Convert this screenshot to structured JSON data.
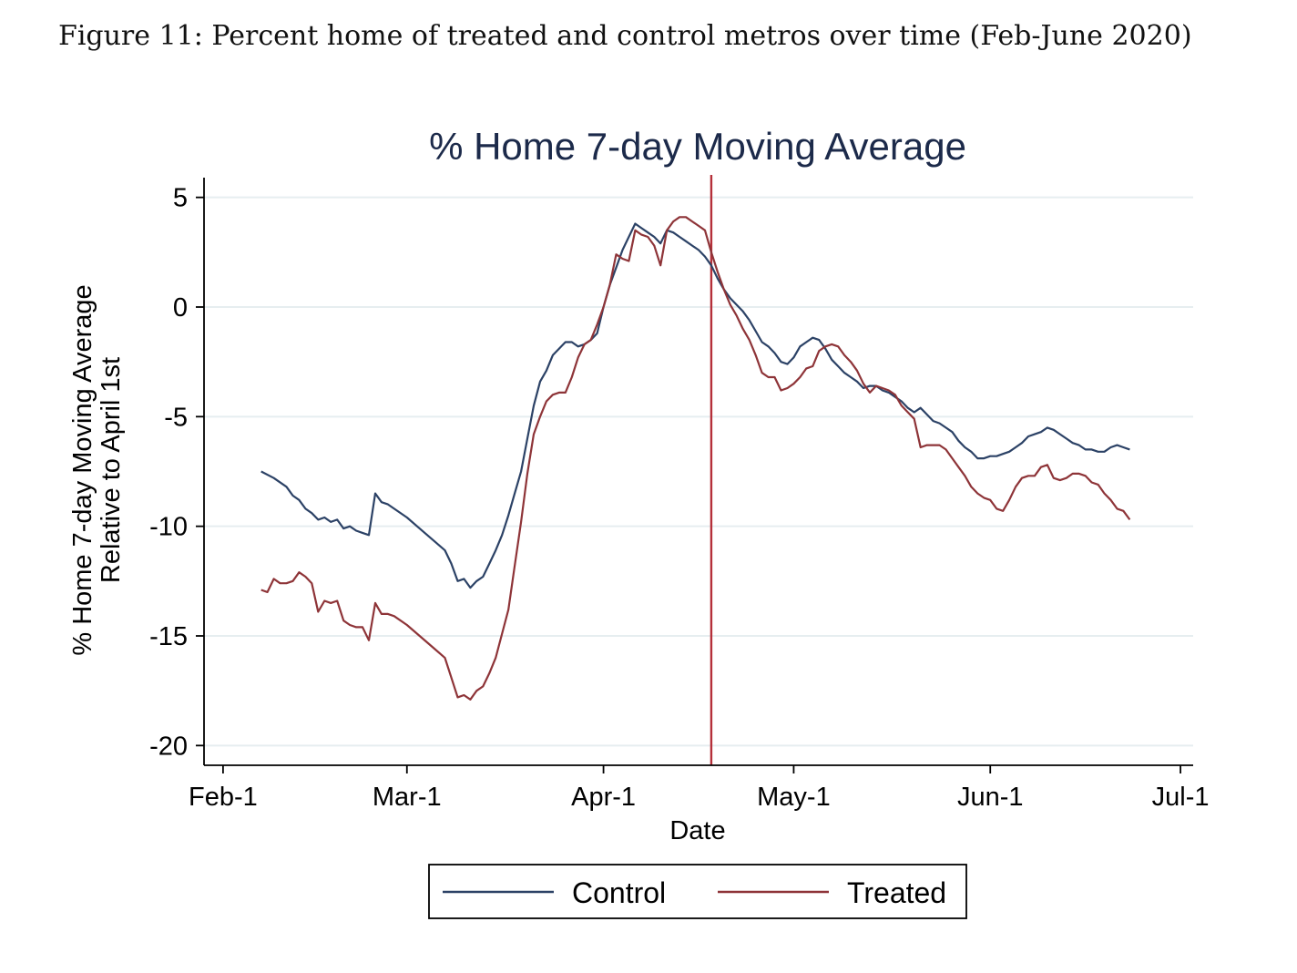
{
  "figure": {
    "caption": "Figure 11: Percent home of treated and control metros over time (Feb-June 2020)"
  },
  "chart_data": {
    "type": "line",
    "title": "% Home 7-day Moving Average",
    "xlabel": "Date",
    "ylabel_line1": "% Home 7-day Moving Average",
    "ylabel_line2": "Relative to April 1st",
    "x_ticks": [
      {
        "label": "Feb-1",
        "date": "2020-02-01"
      },
      {
        "label": "Mar-1",
        "date": "2020-03-01"
      },
      {
        "label": "Apr-1",
        "date": "2020-04-01"
      },
      {
        "label": "May-1",
        "date": "2020-05-01"
      },
      {
        "label": "Jun-1",
        "date": "2020-06-01"
      },
      {
        "label": "Jul-1",
        "date": "2020-07-01"
      }
    ],
    "xlim": [
      "2020-01-29",
      "2020-07-03"
    ],
    "y_ticks": [
      5,
      0,
      -5,
      -10,
      -15,
      -20
    ],
    "ylim": [
      -20.9,
      5.9
    ],
    "grid": true,
    "vertical_line": {
      "date": "2020-04-18",
      "color": "#b5303a"
    },
    "legend_position": "bottom",
    "series": [
      {
        "name": "Control",
        "color": "#2c4266",
        "points": [
          [
            "2020-02-07",
            -7.5
          ],
          [
            "2020-02-09",
            -7.8
          ],
          [
            "2020-02-11",
            -8.2
          ],
          [
            "2020-02-12",
            -8.6
          ],
          [
            "2020-02-13",
            -8.8
          ],
          [
            "2020-02-14",
            -9.2
          ],
          [
            "2020-02-15",
            -9.4
          ],
          [
            "2020-02-16",
            -9.7
          ],
          [
            "2020-02-17",
            -9.6
          ],
          [
            "2020-02-18",
            -9.8
          ],
          [
            "2020-02-19",
            -9.7
          ],
          [
            "2020-02-20",
            -10.1
          ],
          [
            "2020-02-21",
            -10.0
          ],
          [
            "2020-02-22",
            -10.2
          ],
          [
            "2020-02-23",
            -10.3
          ],
          [
            "2020-02-24",
            -10.4
          ],
          [
            "2020-02-25",
            -8.5
          ],
          [
            "2020-02-26",
            -8.9
          ],
          [
            "2020-02-27",
            -9.0
          ],
          [
            "2020-02-28",
            -9.2
          ],
          [
            "2020-03-01",
            -9.6
          ],
          [
            "2020-03-03",
            -10.1
          ],
          [
            "2020-03-05",
            -10.6
          ],
          [
            "2020-03-07",
            -11.1
          ],
          [
            "2020-03-08",
            -11.7
          ],
          [
            "2020-03-09",
            -12.5
          ],
          [
            "2020-03-10",
            -12.4
          ],
          [
            "2020-03-11",
            -12.8
          ],
          [
            "2020-03-12",
            -12.5
          ],
          [
            "2020-03-13",
            -12.3
          ],
          [
            "2020-03-14",
            -11.7
          ],
          [
            "2020-03-15",
            -11.1
          ],
          [
            "2020-03-16",
            -10.4
          ],
          [
            "2020-03-17",
            -9.5
          ],
          [
            "2020-03-18",
            -8.5
          ],
          [
            "2020-03-19",
            -7.5
          ],
          [
            "2020-03-20",
            -6.0
          ],
          [
            "2020-03-21",
            -4.5
          ],
          [
            "2020-03-22",
            -3.4
          ],
          [
            "2020-03-23",
            -2.9
          ],
          [
            "2020-03-24",
            -2.2
          ],
          [
            "2020-03-25",
            -1.9
          ],
          [
            "2020-03-26",
            -1.6
          ],
          [
            "2020-03-27",
            -1.6
          ],
          [
            "2020-03-28",
            -1.8
          ],
          [
            "2020-03-29",
            -1.7
          ],
          [
            "2020-03-30",
            -1.5
          ],
          [
            "2020-03-31",
            -1.2
          ],
          [
            "2020-04-01",
            0.0
          ],
          [
            "2020-04-02",
            1.0
          ],
          [
            "2020-04-03",
            1.8
          ],
          [
            "2020-04-04",
            2.6
          ],
          [
            "2020-04-05",
            3.2
          ],
          [
            "2020-04-06",
            3.8
          ],
          [
            "2020-04-07",
            3.6
          ],
          [
            "2020-04-08",
            3.4
          ],
          [
            "2020-04-09",
            3.2
          ],
          [
            "2020-04-10",
            2.9
          ],
          [
            "2020-04-11",
            3.5
          ],
          [
            "2020-04-12",
            3.4
          ],
          [
            "2020-04-13",
            3.2
          ],
          [
            "2020-04-14",
            3.0
          ],
          [
            "2020-04-15",
            2.8
          ],
          [
            "2020-04-16",
            2.6
          ],
          [
            "2020-04-17",
            2.3
          ],
          [
            "2020-04-18",
            1.9
          ],
          [
            "2020-04-19",
            1.3
          ],
          [
            "2020-04-20",
            0.8
          ],
          [
            "2020-04-21",
            0.4
          ],
          [
            "2020-04-22",
            0.1
          ],
          [
            "2020-04-23",
            -0.2
          ],
          [
            "2020-04-24",
            -0.6
          ],
          [
            "2020-04-25",
            -1.1
          ],
          [
            "2020-04-26",
            -1.6
          ],
          [
            "2020-04-27",
            -1.8
          ],
          [
            "2020-04-28",
            -2.1
          ],
          [
            "2020-04-29",
            -2.5
          ],
          [
            "2020-04-30",
            -2.6
          ],
          [
            "2020-05-01",
            -2.3
          ],
          [
            "2020-05-02",
            -1.8
          ],
          [
            "2020-05-03",
            -1.6
          ],
          [
            "2020-05-04",
            -1.4
          ],
          [
            "2020-05-05",
            -1.5
          ],
          [
            "2020-05-06",
            -1.9
          ],
          [
            "2020-05-07",
            -2.4
          ],
          [
            "2020-05-08",
            -2.7
          ],
          [
            "2020-05-09",
            -3.0
          ],
          [
            "2020-05-10",
            -3.2
          ],
          [
            "2020-05-11",
            -3.4
          ],
          [
            "2020-05-12",
            -3.7
          ],
          [
            "2020-05-13",
            -3.6
          ],
          [
            "2020-05-14",
            -3.6
          ],
          [
            "2020-05-15",
            -3.8
          ],
          [
            "2020-05-16",
            -3.9
          ],
          [
            "2020-05-17",
            -4.1
          ],
          [
            "2020-05-18",
            -4.3
          ],
          [
            "2020-05-19",
            -4.6
          ],
          [
            "2020-05-20",
            -4.8
          ],
          [
            "2020-05-21",
            -4.6
          ],
          [
            "2020-05-22",
            -4.9
          ],
          [
            "2020-05-23",
            -5.2
          ],
          [
            "2020-05-24",
            -5.3
          ],
          [
            "2020-05-25",
            -5.5
          ],
          [
            "2020-05-26",
            -5.7
          ],
          [
            "2020-05-27",
            -6.1
          ],
          [
            "2020-05-28",
            -6.4
          ],
          [
            "2020-05-29",
            -6.6
          ],
          [
            "2020-05-30",
            -6.9
          ],
          [
            "2020-05-31",
            -6.9
          ],
          [
            "2020-06-01",
            -6.8
          ],
          [
            "2020-06-02",
            -6.8
          ],
          [
            "2020-06-03",
            -6.7
          ],
          [
            "2020-06-04",
            -6.6
          ],
          [
            "2020-06-05",
            -6.4
          ],
          [
            "2020-06-06",
            -6.2
          ],
          [
            "2020-06-07",
            -5.9
          ],
          [
            "2020-06-08",
            -5.8
          ],
          [
            "2020-06-09",
            -5.7
          ],
          [
            "2020-06-10",
            -5.5
          ],
          [
            "2020-06-11",
            -5.6
          ],
          [
            "2020-06-12",
            -5.8
          ],
          [
            "2020-06-13",
            -6.0
          ],
          [
            "2020-06-14",
            -6.2
          ],
          [
            "2020-06-15",
            -6.3
          ],
          [
            "2020-06-16",
            -6.5
          ],
          [
            "2020-06-17",
            -6.5
          ],
          [
            "2020-06-18",
            -6.6
          ],
          [
            "2020-06-19",
            -6.6
          ],
          [
            "2020-06-20",
            -6.4
          ],
          [
            "2020-06-21",
            -6.3
          ],
          [
            "2020-06-22",
            -6.4
          ],
          [
            "2020-06-23",
            -6.5
          ]
        ]
      },
      {
        "name": "Treated",
        "color": "#8e3438",
        "points": [
          [
            "2020-02-07",
            -12.9
          ],
          [
            "2020-02-08",
            -13.0
          ],
          [
            "2020-02-09",
            -12.4
          ],
          [
            "2020-02-10",
            -12.6
          ],
          [
            "2020-02-11",
            -12.6
          ],
          [
            "2020-02-12",
            -12.5
          ],
          [
            "2020-02-13",
            -12.1
          ],
          [
            "2020-02-14",
            -12.3
          ],
          [
            "2020-02-15",
            -12.6
          ],
          [
            "2020-02-16",
            -13.9
          ],
          [
            "2020-02-17",
            -13.4
          ],
          [
            "2020-02-18",
            -13.5
          ],
          [
            "2020-02-19",
            -13.4
          ],
          [
            "2020-02-20",
            -14.3
          ],
          [
            "2020-02-21",
            -14.5
          ],
          [
            "2020-02-22",
            -14.6
          ],
          [
            "2020-02-23",
            -14.6
          ],
          [
            "2020-02-24",
            -15.2
          ],
          [
            "2020-02-25",
            -13.5
          ],
          [
            "2020-02-26",
            -14.0
          ],
          [
            "2020-02-27",
            -14.0
          ],
          [
            "2020-02-28",
            -14.1
          ],
          [
            "2020-03-01",
            -14.5
          ],
          [
            "2020-03-03",
            -15.0
          ],
          [
            "2020-03-05",
            -15.5
          ],
          [
            "2020-03-07",
            -16.0
          ],
          [
            "2020-03-08",
            -16.9
          ],
          [
            "2020-03-09",
            -17.8
          ],
          [
            "2020-03-10",
            -17.7
          ],
          [
            "2020-03-11",
            -17.9
          ],
          [
            "2020-03-12",
            -17.5
          ],
          [
            "2020-03-13",
            -17.3
          ],
          [
            "2020-03-14",
            -16.7
          ],
          [
            "2020-03-15",
            -16.0
          ],
          [
            "2020-03-16",
            -14.9
          ],
          [
            "2020-03-17",
            -13.8
          ],
          [
            "2020-03-18",
            -11.8
          ],
          [
            "2020-03-19",
            -9.8
          ],
          [
            "2020-03-20",
            -7.6
          ],
          [
            "2020-03-21",
            -5.8
          ],
          [
            "2020-03-22",
            -5.0
          ],
          [
            "2020-03-23",
            -4.3
          ],
          [
            "2020-03-24",
            -4.0
          ],
          [
            "2020-03-25",
            -3.9
          ],
          [
            "2020-03-26",
            -3.9
          ],
          [
            "2020-03-27",
            -3.2
          ],
          [
            "2020-03-28",
            -2.3
          ],
          [
            "2020-03-29",
            -1.7
          ],
          [
            "2020-03-30",
            -1.5
          ],
          [
            "2020-03-31",
            -0.8
          ],
          [
            "2020-04-01",
            0.0
          ],
          [
            "2020-04-02",
            1.0
          ],
          [
            "2020-04-03",
            2.4
          ],
          [
            "2020-04-04",
            2.2
          ],
          [
            "2020-04-05",
            2.1
          ],
          [
            "2020-04-06",
            3.5
          ],
          [
            "2020-04-07",
            3.3
          ],
          [
            "2020-04-08",
            3.2
          ],
          [
            "2020-04-09",
            2.8
          ],
          [
            "2020-04-10",
            1.9
          ],
          [
            "2020-04-11",
            3.5
          ],
          [
            "2020-04-12",
            3.9
          ],
          [
            "2020-04-13",
            4.1
          ],
          [
            "2020-04-14",
            4.1
          ],
          [
            "2020-04-15",
            3.9
          ],
          [
            "2020-04-16",
            3.7
          ],
          [
            "2020-04-17",
            3.5
          ],
          [
            "2020-04-18",
            2.5
          ],
          [
            "2020-04-19",
            1.6
          ],
          [
            "2020-04-20",
            0.8
          ],
          [
            "2020-04-21",
            0.1
          ],
          [
            "2020-04-22",
            -0.4
          ],
          [
            "2020-04-23",
            -1.0
          ],
          [
            "2020-04-24",
            -1.5
          ],
          [
            "2020-04-25",
            -2.2
          ],
          [
            "2020-04-26",
            -3.0
          ],
          [
            "2020-04-27",
            -3.2
          ],
          [
            "2020-04-28",
            -3.2
          ],
          [
            "2020-04-29",
            -3.8
          ],
          [
            "2020-04-30",
            -3.7
          ],
          [
            "2020-05-01",
            -3.5
          ],
          [
            "2020-05-02",
            -3.2
          ],
          [
            "2020-05-03",
            -2.8
          ],
          [
            "2020-05-04",
            -2.7
          ],
          [
            "2020-05-05",
            -2.0
          ],
          [
            "2020-05-06",
            -1.8
          ],
          [
            "2020-05-07",
            -1.7
          ],
          [
            "2020-05-08",
            -1.8
          ],
          [
            "2020-05-09",
            -2.2
          ],
          [
            "2020-05-10",
            -2.5
          ],
          [
            "2020-05-11",
            -2.9
          ],
          [
            "2020-05-12",
            -3.5
          ],
          [
            "2020-05-13",
            -3.9
          ],
          [
            "2020-05-14",
            -3.6
          ],
          [
            "2020-05-15",
            -3.7
          ],
          [
            "2020-05-16",
            -3.8
          ],
          [
            "2020-05-17",
            -4.0
          ],
          [
            "2020-05-18",
            -4.5
          ],
          [
            "2020-05-19",
            -4.8
          ],
          [
            "2020-05-20",
            -5.1
          ],
          [
            "2020-05-21",
            -6.4
          ],
          [
            "2020-05-22",
            -6.3
          ],
          [
            "2020-05-23",
            -6.3
          ],
          [
            "2020-05-24",
            -6.3
          ],
          [
            "2020-05-25",
            -6.5
          ],
          [
            "2020-05-26",
            -6.9
          ],
          [
            "2020-05-27",
            -7.3
          ],
          [
            "2020-05-28",
            -7.7
          ],
          [
            "2020-05-29",
            -8.2
          ],
          [
            "2020-05-30",
            -8.5
          ],
          [
            "2020-05-31",
            -8.7
          ],
          [
            "2020-06-01",
            -8.8
          ],
          [
            "2020-06-02",
            -9.2
          ],
          [
            "2020-06-03",
            -9.3
          ],
          [
            "2020-06-04",
            -8.8
          ],
          [
            "2020-06-05",
            -8.2
          ],
          [
            "2020-06-06",
            -7.8
          ],
          [
            "2020-06-07",
            -7.7
          ],
          [
            "2020-06-08",
            -7.7
          ],
          [
            "2020-06-09",
            -7.3
          ],
          [
            "2020-06-10",
            -7.2
          ],
          [
            "2020-06-11",
            -7.8
          ],
          [
            "2020-06-12",
            -7.9
          ],
          [
            "2020-06-13",
            -7.8
          ],
          [
            "2020-06-14",
            -7.6
          ],
          [
            "2020-06-15",
            -7.6
          ],
          [
            "2020-06-16",
            -7.7
          ],
          [
            "2020-06-17",
            -8.0
          ],
          [
            "2020-06-18",
            -8.1
          ],
          [
            "2020-06-19",
            -8.5
          ],
          [
            "2020-06-20",
            -8.8
          ],
          [
            "2020-06-21",
            -9.2
          ],
          [
            "2020-06-22",
            -9.3
          ],
          [
            "2020-06-23",
            -9.7
          ]
        ]
      }
    ]
  }
}
